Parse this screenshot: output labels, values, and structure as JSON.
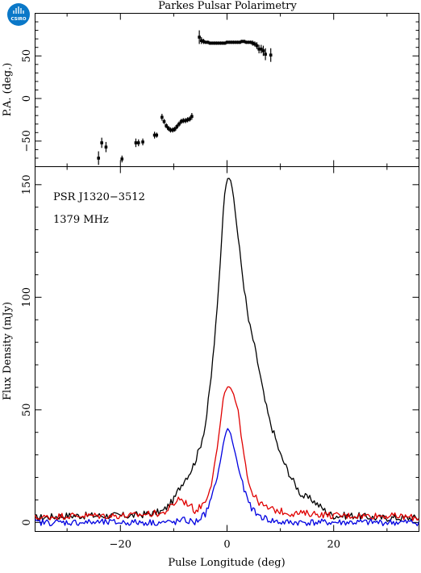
{
  "chart_data": [
    {
      "type": "scatter",
      "title": "Parkes Pulsar Polarimetry",
      "ylabel": "P.A. (deg.)",
      "xlim": [
        -36,
        36
      ],
      "ylim": [
        -80,
        100
      ],
      "yticks": [
        -50,
        0,
        50
      ],
      "x": [
        -24.1,
        -23.5,
        -22.7,
        -19.7,
        -17.1,
        -16.6,
        -15.8,
        -13.6,
        -13.2,
        -12.2,
        -11.8,
        -11.4,
        -11.0,
        -10.6,
        -10.2,
        -9.8,
        -9.4,
        -9.0,
        -8.6,
        -8.2,
        -7.8,
        -7.4,
        -7.0,
        -6.6,
        -5.2,
        -4.8,
        -4.4,
        -4.0,
        -3.6,
        -3.2,
        -2.8,
        -2.4,
        -2.0,
        -1.6,
        -1.2,
        -0.8,
        -0.4,
        0.0,
        0.4,
        0.8,
        1.2,
        1.6,
        2.0,
        2.4,
        2.8,
        3.2,
        3.6,
        4.0,
        4.4,
        4.8,
        5.2,
        5.6,
        6.0,
        6.4,
        6.8,
        7.2,
        8.2
      ],
      "y": [
        -70,
        -52,
        -57,
        -71,
        -52,
        -52,
        -51,
        -43,
        -43,
        -22,
        -27,
        -32,
        -35,
        -37,
        -37,
        -36,
        -33,
        -30,
        -27,
        -26,
        -26,
        -25,
        -24,
        -21,
        72,
        68,
        67,
        66,
        66,
        65,
        65,
        65,
        65,
        65,
        65,
        65,
        65,
        66,
        66,
        66,
        66,
        66,
        66,
        66,
        67,
        67,
        66,
        66,
        66,
        65,
        64,
        62,
        58,
        58,
        56,
        52,
        51
      ],
      "yerr": [
        8,
        6,
        6,
        4,
        5,
        4,
        4,
        4,
        3,
        4,
        3,
        3,
        3,
        3,
        3,
        3,
        3,
        3,
        3,
        3,
        3,
        3,
        3,
        4,
        8,
        4,
        3,
        2,
        2,
        2,
        2,
        2,
        2,
        2,
        2,
        2,
        2,
        2,
        2,
        2,
        2,
        2,
        2,
        2,
        2,
        2,
        2,
        2,
        2,
        3,
        3,
        4,
        5,
        5,
        6,
        7,
        8
      ]
    },
    {
      "type": "line",
      "xlabel": "Pulse Longitude (deg)",
      "ylabel": "Flux Density (mJy)",
      "xlim": [
        -36,
        36
      ],
      "ylim": [
        -4,
        158
      ],
      "xticks": [
        -20,
        0,
        20
      ],
      "yticks": [
        0,
        50,
        100,
        150
      ],
      "annotations": [
        "PSR J1320−3512",
        "1379 MHz"
      ],
      "series": [
        {
          "color": "#000000",
          "points": [
            [
              -36,
              2
            ],
            [
              -30,
              3
            ],
            [
              -24,
              3
            ],
            [
              -18,
              3
            ],
            [
              -14,
              4
            ],
            [
              -12,
              5
            ],
            [
              -10,
              10
            ],
            [
              -9,
              15
            ],
            [
              -8,
              19
            ],
            [
              -7,
              22
            ],
            [
              -6,
              27
            ],
            [
              -5,
              34
            ],
            [
              -4,
              44
            ],
            [
              -3,
              64
            ],
            [
              -2,
              90
            ],
            [
              -1.2,
              118
            ],
            [
              -0.6,
              143
            ],
            [
              0,
              153
            ],
            [
              0.6,
              153
            ],
            [
              1.2,
              145
            ],
            [
              2,
              128
            ],
            [
              3,
              108
            ],
            [
              4,
              90
            ],
            [
              5,
              80
            ],
            [
              6,
              68
            ],
            [
              7,
              55
            ],
            [
              8,
              45
            ],
            [
              9,
              38
            ],
            [
              10,
              30
            ],
            [
              11,
              25
            ],
            [
              12,
              20
            ],
            [
              13,
              16
            ],
            [
              14,
              12
            ],
            [
              15,
              11
            ],
            [
              16,
              10
            ],
            [
              17,
              8
            ],
            [
              18,
              6
            ],
            [
              19,
              4
            ],
            [
              20,
              3
            ],
            [
              24,
              3
            ],
            [
              28,
              2
            ],
            [
              32,
              2
            ],
            [
              36,
              2
            ]
          ]
        },
        {
          "color": "#e00000",
          "points": [
            [
              -36,
              2
            ],
            [
              -30,
              3
            ],
            [
              -24,
              3
            ],
            [
              -18,
              3
            ],
            [
              -14,
              4
            ],
            [
              -12,
              4
            ],
            [
              -10,
              8
            ],
            [
              -9,
              11
            ],
            [
              -8,
              9
            ],
            [
              -7,
              8
            ],
            [
              -6,
              5
            ],
            [
              -5,
              7
            ],
            [
              -4,
              10
            ],
            [
              -3,
              17
            ],
            [
              -2,
              30
            ],
            [
              -1.2,
              45
            ],
            [
              -0.6,
              57
            ],
            [
              0,
              60
            ],
            [
              0.6,
              60
            ],
            [
              1.2,
              57
            ],
            [
              2,
              50
            ],
            [
              3,
              34
            ],
            [
              4,
              18
            ],
            [
              5,
              12
            ],
            [
              6,
              9
            ],
            [
              7,
              7
            ],
            [
              8,
              6
            ],
            [
              10,
              5
            ],
            [
              12,
              4
            ],
            [
              16,
              4
            ],
            [
              20,
              3
            ],
            [
              24,
              3
            ],
            [
              30,
              3
            ],
            [
              36,
              2
            ]
          ]
        },
        {
          "color": "#0000e0",
          "points": [
            [
              -36,
              0
            ],
            [
              -30,
              0
            ],
            [
              -24,
              0
            ],
            [
              -18,
              0
            ],
            [
              -14,
              0
            ],
            [
              -12,
              0
            ],
            [
              -10,
              0
            ],
            [
              -8,
              1
            ],
            [
              -6,
              0
            ],
            [
              -5,
              2
            ],
            [
              -4,
              4
            ],
            [
              -3,
              10
            ],
            [
              -2,
              18
            ],
            [
              -1.2,
              28
            ],
            [
              -0.6,
              36
            ],
            [
              0,
              42
            ],
            [
              0.6,
              40
            ],
            [
              1.2,
              34
            ],
            [
              2,
              26
            ],
            [
              3,
              16
            ],
            [
              4,
              9
            ],
            [
              5,
              5
            ],
            [
              6,
              3
            ],
            [
              7,
              2
            ],
            [
              8,
              1
            ],
            [
              10,
              0
            ],
            [
              14,
              0
            ],
            [
              20,
              0
            ],
            [
              26,
              0
            ],
            [
              30,
              0
            ],
            [
              36,
              0
            ]
          ]
        }
      ]
    }
  ],
  "logo": {
    "text": "CSIRO",
    "color": "#0a78c8"
  }
}
